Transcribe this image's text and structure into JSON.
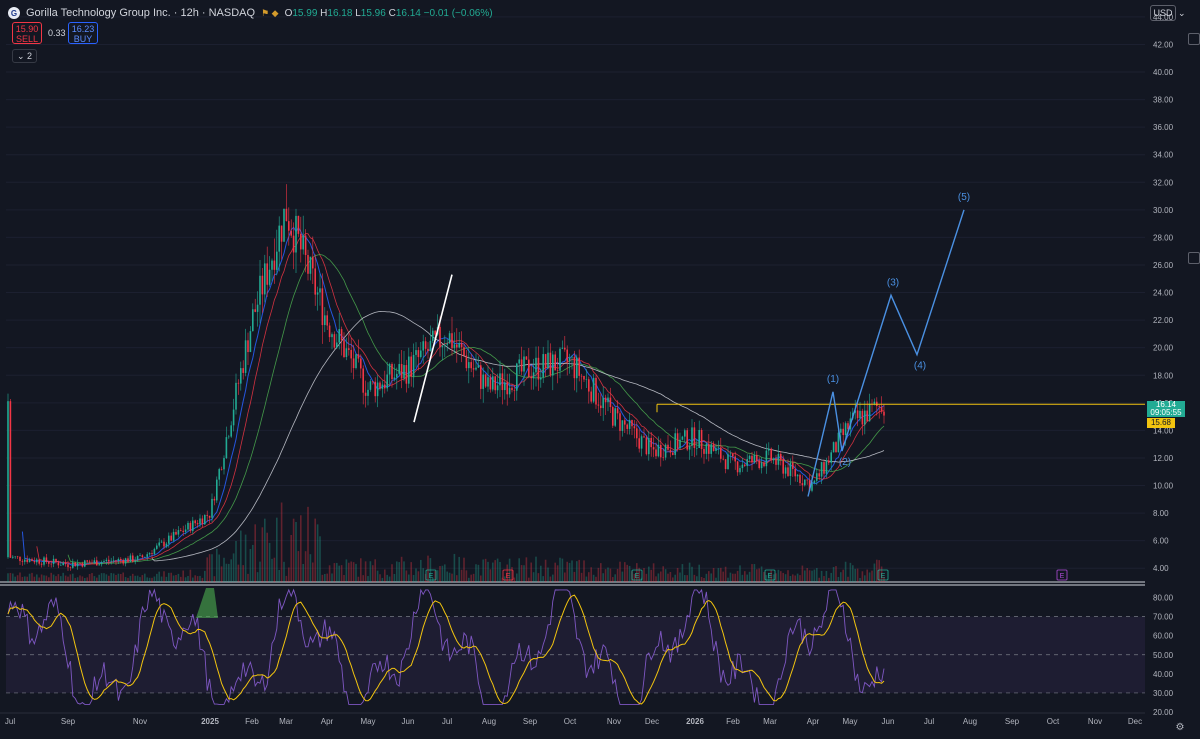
{
  "header": {
    "title": "Gorilla Technology Group Inc. · 12h · NASDAQ",
    "logo_letter": "G",
    "open_label": "O",
    "open": "15.99",
    "high_label": "H",
    "high": "16.18",
    "low_label": "L",
    "low": "15.96",
    "close_label": "C",
    "close": "16.14",
    "change": "−0.01 (−0.06%)"
  },
  "trade": {
    "sell_price": "15.90",
    "sell_label": "SELL",
    "spread": "0.33",
    "buy_price": "16.23",
    "buy_label": "BUY"
  },
  "indicators": {
    "count_label": "2"
  },
  "price_axis": {
    "currency": "USD",
    "labels": [
      "44.00",
      "42.00",
      "40.00",
      "38.00",
      "36.00",
      "34.00",
      "32.00",
      "30.00",
      "28.00",
      "26.00",
      "24.00",
      "22.00",
      "20.00",
      "18.00",
      "16.00",
      "14.00",
      "12.00",
      "10.00",
      "8.00",
      "6.00",
      "4.00"
    ],
    "current_price": "16.14",
    "countdown": "09:05:55",
    "ma_price": "15.68"
  },
  "rsi_axis": {
    "labels": [
      "80.00",
      "70.00",
      "60.00",
      "50.00",
      "40.00",
      "30.00",
      "20.00"
    ]
  },
  "time_axis": {
    "labels": [
      "Jul",
      "Sep",
      "Nov",
      "2025",
      "Feb",
      "Mar",
      "Apr",
      "May",
      "Jun",
      "Jul",
      "Aug",
      "Sep",
      "Oct",
      "Nov",
      "Dec",
      "2026",
      "Feb",
      "Mar",
      "Apr",
      "May",
      "Jun",
      "Jul",
      "Aug",
      "Sep",
      "Oct",
      "Nov",
      "Dec"
    ]
  },
  "annotations": {
    "waves": [
      "(1)",
      "(2)",
      "(3)",
      "(4)",
      "(5)"
    ],
    "earnings_marker": "E"
  },
  "colors": {
    "background": "#131722",
    "up": "#22ab94",
    "down": "#f23645",
    "wave": "#4a90e2",
    "rsi": "#7e57c2",
    "rsi_ma": "#f2c40f",
    "horizontal_level": "#f2c40f",
    "trendline": "#ffffff"
  },
  "chart_data": {
    "type": "line",
    "title": "",
    "x": [
      "Jul",
      "Sep",
      "Nov",
      "2025",
      "Feb",
      "Mar",
      "Apr",
      "May",
      "Jun",
      "Jul",
      "Aug",
      "Sep",
      "Oct",
      "Nov",
      "Dec",
      "2026",
      "Feb",
      "Mar",
      "Apr",
      "May",
      "Jun"
    ],
    "series": [
      {
        "values": [
          4.8,
          4.3,
          4.7,
          8.0,
          22.0,
          30.0,
          22.0,
          17.0,
          18.5,
          21.0,
          17.0,
          18.5,
          19.0,
          15.0,
          12.5,
          13.5,
          11.5,
          12.0,
          10.0,
          14.5,
          16.14
        ]
      }
    ],
    "ylim": [
      3,
      44.5
    ],
    "rsi_ylim": [
      20,
      85
    ],
    "wave_projection": {
      "labels": [
        "(1)",
        "(2)",
        "(3)",
        "(4)",
        "(5)"
      ],
      "points": [
        [
          "Apr",
          9.2
        ],
        [
          "Apr",
          16.8
        ],
        [
          "May",
          12.5
        ],
        [
          "Jun",
          23.8
        ],
        [
          "Jun",
          19.5
        ],
        [
          "Aug",
          30.0
        ]
      ]
    },
    "trendline": [
      [
        "Jul",
        25.3
      ],
      [
        "Jun",
        14.6
      ]
    ],
    "horizontal_level": 15.9
  }
}
